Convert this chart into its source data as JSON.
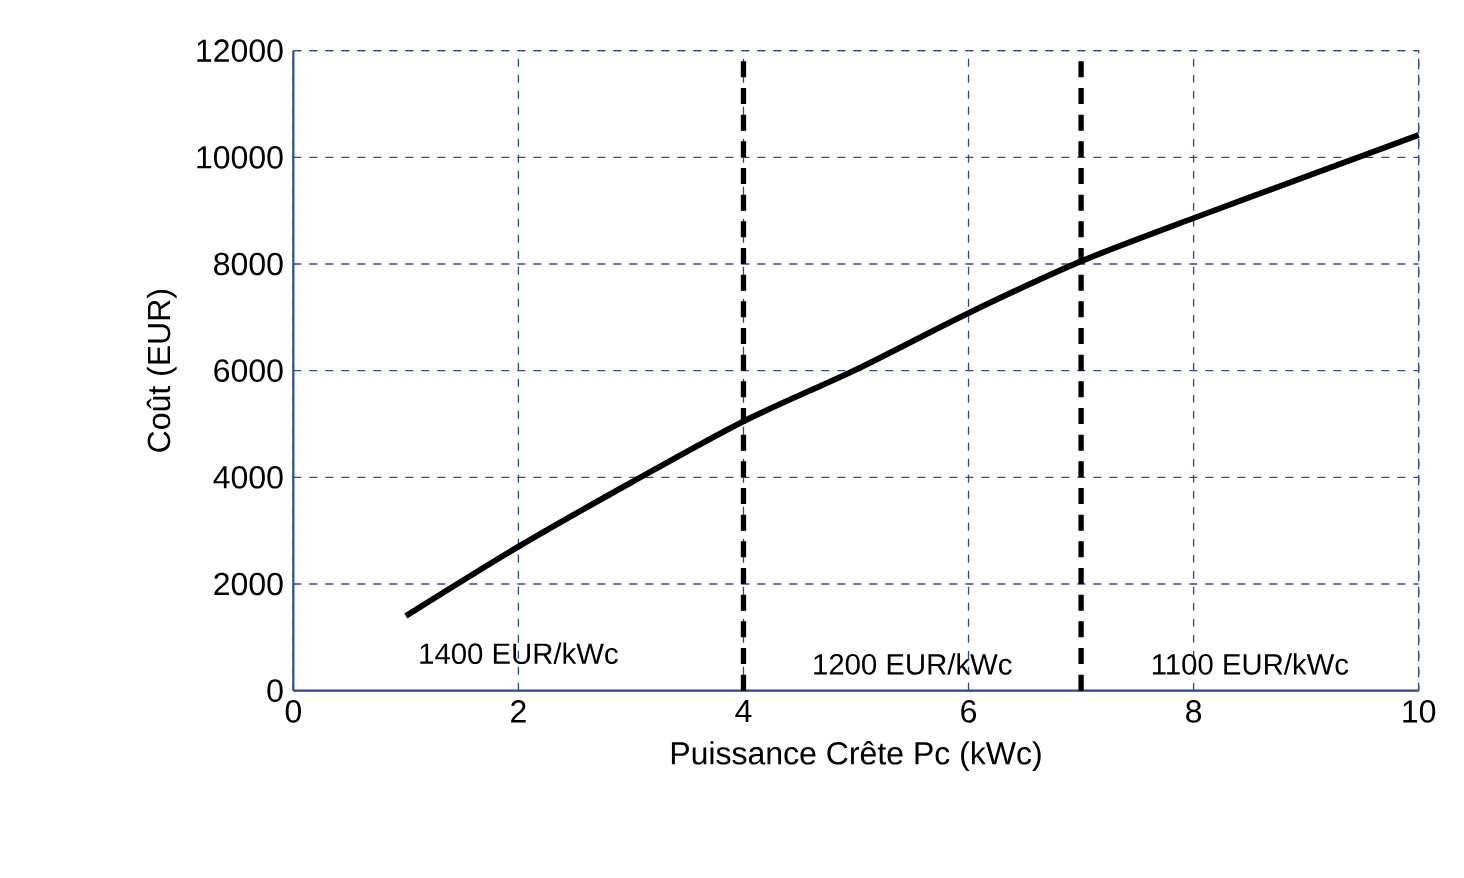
{
  "chart_data": {
    "type": "line",
    "xlabel": "Puissance Crête Pc (kWc)",
    "ylabel": "Coût (EUR)",
    "x": [
      1,
      2,
      3,
      4,
      5,
      6,
      7,
      8,
      9,
      10
    ],
    "series": [
      {
        "color": "#000000",
        "values": [
          1400,
          2700,
          3900,
          5050,
          6020,
          7080,
          8050,
          8860,
          9640,
          10420
        ]
      }
    ],
    "xlim": [
      0,
      10
    ],
    "xticks": [
      0,
      2,
      4,
      6,
      8,
      10
    ],
    "ylim": [
      0,
      12000
    ],
    "yticks": [
      0,
      2000,
      4000,
      6000,
      8000,
      10000,
      12000
    ],
    "grid": true,
    "line_style": "solid",
    "marker": "none",
    "ref_lines": [
      {
        "axis": "x",
        "value": 4,
        "color": "#000000",
        "line_style": "dashed"
      },
      {
        "axis": "x",
        "value": 7,
        "color": "#000000",
        "line_style": "dashed"
      }
    ],
    "annotations": [
      "1400 EUR/kWc",
      "1200  EUR/kWc",
      "1100 EUR/kWc"
    ]
  }
}
